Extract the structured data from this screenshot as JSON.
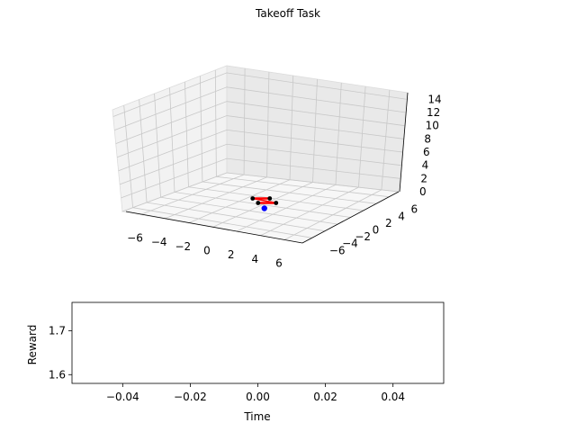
{
  "chart_data": [
    {
      "type": "scatter3d",
      "title": "Takeoff Task",
      "x_ticks": [
        "−6",
        "−4",
        "−2",
        "0",
        "2",
        "4",
        "6"
      ],
      "y_ticks": [
        "−6",
        "−4",
        "−2",
        "0",
        "2",
        "4",
        "6"
      ],
      "z_ticks": [
        "0",
        "2",
        "4",
        "6",
        "8",
        "10",
        "12",
        "14"
      ],
      "xlim": [
        -7.5,
        7.5
      ],
      "ylim": [
        -7.5,
        7.5
      ],
      "zlim": [
        0,
        15
      ],
      "grid": true,
      "quadcopter": {
        "position": [
          0,
          0,
          0
        ],
        "arm_color": "#ff0000",
        "rotor_color": "#000000",
        "target_color": "#0000ff"
      }
    },
    {
      "type": "line",
      "xlabel": "Time",
      "ylabel": "Reward",
      "x_ticks": [
        "−0.04",
        "−0.02",
        "0.00",
        "0.02",
        "0.04"
      ],
      "y_ticks": [
        "1.6",
        "1.7"
      ],
      "xlim": [
        -0.055,
        0.055
      ],
      "ylim": [
        1.58,
        1.765
      ],
      "series": [
        {
          "x": [],
          "y": []
        }
      ]
    }
  ]
}
